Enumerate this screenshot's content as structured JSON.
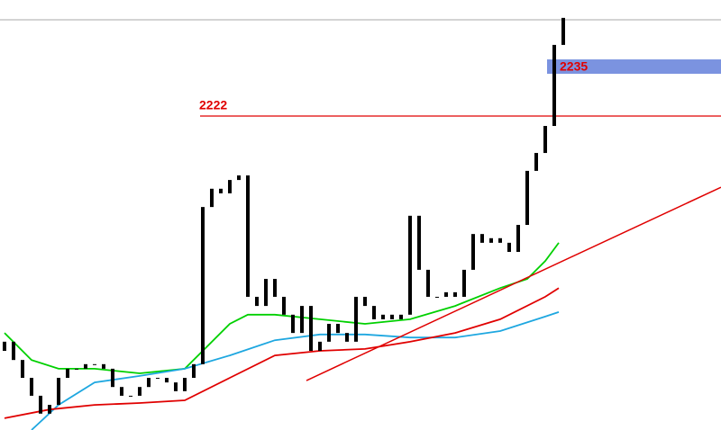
{
  "chart_data": {
    "type": "candlestick",
    "xlim": [
      -0.5,
      79.5
    ],
    "ylim": [
      2139.5,
      2252.5
    ],
    "color": "#000000",
    "open": [
      2160.3,
      2162.7,
      2157.9,
      2153.2,
      2148.5,
      2143.8,
      2146.1,
      2153.2,
      2155.6,
      2155.6,
      2156.8,
      2156.8,
      2155.6,
      2150.8,
      2148.5,
      2148.5,
      2150.8,
      2153.2,
      2153.2,
      2152.0,
      2149.7,
      2153.2,
      2156.8,
      2198.1,
      2202.9,
      2201.7,
      2205.2,
      2206.4,
      2174.5,
      2172.1,
      2179.2,
      2174.5,
      2169.8,
      2165.0,
      2172.1,
      2160.3,
      2162.7,
      2167.4,
      2165.0,
      2162.7,
      2174.5,
      2172.1,
      2168.6,
      2169.8,
      2168.6,
      2169.8,
      2195.8,
      2181.6,
      2174.5,
      2174.5,
      2175.7,
      2174.5,
      2181.6,
      2191.0,
      2188.7,
      2189.9,
      2188.7,
      2186.3,
      2193.4,
      2207.6,
      2212.3,
      2219.4,
      2240.7
    ],
    "close": [
      2162.7,
      2157.9,
      2153.2,
      2148.5,
      2143.8,
      2146.1,
      2153.2,
      2155.6,
      2155.6,
      2156.8,
      2156.8,
      2155.6,
      2150.8,
      2148.5,
      2148.5,
      2150.8,
      2153.2,
      2153.2,
      2152.0,
      2149.7,
      2153.2,
      2156.8,
      2198.1,
      2202.9,
      2201.7,
      2205.2,
      2206.4,
      2174.5,
      2172.1,
      2179.2,
      2174.5,
      2169.8,
      2165.0,
      2172.1,
      2160.3,
      2162.7,
      2167.4,
      2165.0,
      2162.7,
      2174.5,
      2172.1,
      2168.6,
      2169.8,
      2168.6,
      2169.8,
      2195.8,
      2181.6,
      2174.5,
      2174.5,
      2175.7,
      2174.5,
      2181.6,
      2191.0,
      2188.7,
      2189.9,
      2188.7,
      2186.3,
      2193.4,
      2207.6,
      2212.3,
      2219.4,
      2240.7,
      2247.8
    ],
    "series": [
      {
        "color": "#00d000",
        "x": [
          0,
          3,
          6,
          10,
          15,
          20,
          22,
          25,
          27,
          30,
          35,
          40,
          45,
          50,
          55,
          58,
          60,
          61.5
        ],
        "values": [
          2165.0,
          2157.9,
          2155.6,
          2155.6,
          2154.4,
          2155.6,
          2160.3,
          2167.4,
          2169.8,
          2169.8,
          2168.6,
          2167.4,
          2168.6,
          2172.1,
          2176.8,
          2179.2,
          2183.9,
          2188.7
        ]
      },
      {
        "color": "#1ea7e0",
        "x": [
          3,
          6,
          10,
          15,
          20,
          25,
          30,
          35,
          40,
          45,
          50,
          55,
          60,
          61.5
        ],
        "values": [
          2139.5,
          2146.1,
          2152.0,
          2153.7,
          2155.6,
          2159.1,
          2163.1,
          2164.6,
          2164.6,
          2163.8,
          2163.8,
          2165.5,
          2169.3,
          2170.5
        ]
      },
      {
        "color": "#e00000",
        "x": [
          0,
          5,
          10,
          15,
          20,
          25,
          30,
          35,
          40,
          45,
          50,
          55,
          60,
          61.5
        ],
        "values": [
          2142.6,
          2144.9,
          2146.1,
          2146.6,
          2147.3,
          2153.2,
          2159.1,
          2160.3,
          2160.8,
          2162.7,
          2165.0,
          2168.6,
          2174.5,
          2176.8
        ]
      }
    ],
    "trendline": {
      "color": "#e00000",
      "x": [
        33.5,
        79.5
      ],
      "values": [
        2152.5,
        2203.3
      ]
    },
    "hline": {
      "color": "#e00000",
      "x": 21.7,
      "value": 2222
    },
    "zone": {
      "color": "#7b93e0",
      "x": 60.2,
      "value": 2235
    }
  }
}
